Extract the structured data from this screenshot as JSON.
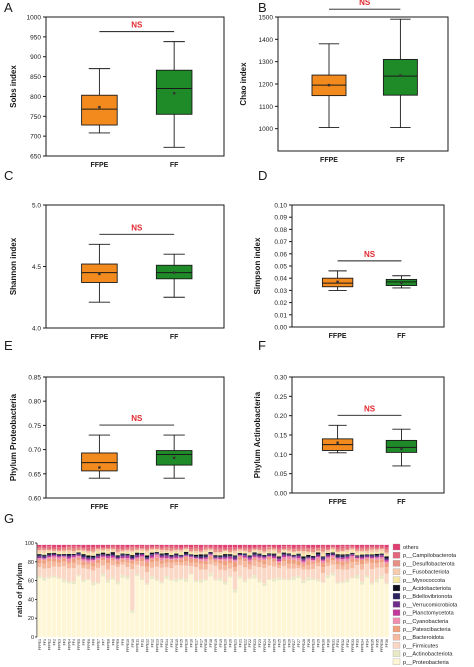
{
  "colors": {
    "ffpe_box": "#F28A1E",
    "ff_box": "#1E8A28",
    "median_line": "#1a1a1a",
    "ns_text": "#E0282E",
    "axis": "#1a1a1a"
  },
  "chart_data": [
    {
      "panel": "A",
      "type": "box",
      "ylabel": "Sobs index",
      "ylim": [
        650,
        1000
      ],
      "yticks": [
        650,
        700,
        750,
        800,
        850,
        900,
        950,
        1000
      ],
      "categories": [
        "FFPE",
        "FF"
      ],
      "boxes": [
        {
          "name": "FFPE",
          "min": 708,
          "q1": 728,
          "median": 768,
          "q3": 803,
          "max": 870,
          "mean": 773,
          "color": "#F28A1E"
        },
        {
          "name": "FF",
          "min": 672,
          "q1": 755,
          "median": 820,
          "q3": 866,
          "max": 938,
          "mean": 808,
          "color": "#1E8A28"
        }
      ],
      "significance": "NS"
    },
    {
      "panel": "B",
      "type": "box",
      "ylabel": "Chao index",
      "ylim": [
        900,
        1500
      ],
      "yticks": [
        1000,
        1100,
        1200,
        1300,
        1400,
        1500
      ],
      "categories": [
        "FFPE",
        "FF"
      ],
      "boxes": [
        {
          "name": "FFPE",
          "min": 1005,
          "q1": 1148,
          "median": 1195,
          "q3": 1240,
          "max": 1380,
          "mean": 1195,
          "color": "#F28A1E"
        },
        {
          "name": "FF",
          "min": 1005,
          "q1": 1150,
          "median": 1235,
          "q3": 1310,
          "max": 1490,
          "mean": 1238,
          "color": "#1E8A28"
        }
      ],
      "significance": "NS"
    },
    {
      "panel": "C",
      "type": "box",
      "ylabel": "Shannon index",
      "ylim": [
        4.0,
        5.0
      ],
      "yticks": [
        4.0,
        4.5,
        5.0
      ],
      "categories": [
        "FFPE",
        "FF"
      ],
      "boxes": [
        {
          "name": "FFPE",
          "min": 4.21,
          "q1": 4.37,
          "median": 4.45,
          "q3": 4.52,
          "max": 4.68,
          "mean": 4.44,
          "color": "#F28A1E"
        },
        {
          "name": "FF",
          "min": 4.25,
          "q1": 4.4,
          "median": 4.45,
          "q3": 4.51,
          "max": 4.6,
          "mean": 4.45,
          "color": "#1E8A28"
        }
      ],
      "significance": "NS"
    },
    {
      "panel": "D",
      "type": "box",
      "ylabel": "Simpson index",
      "ylim": [
        0.0,
        0.1
      ],
      "yticks": [
        0.0,
        0.01,
        0.02,
        0.03,
        0.04,
        0.05,
        0.06,
        0.07,
        0.08,
        0.09,
        0.1
      ],
      "categories": [
        "FFPE",
        "FF"
      ],
      "boxes": [
        {
          "name": "FFPE",
          "min": 0.03,
          "q1": 0.033,
          "median": 0.036,
          "q3": 0.04,
          "max": 0.046,
          "mean": 0.037,
          "color": "#F28A1E"
        },
        {
          "name": "FF",
          "min": 0.032,
          "q1": 0.034,
          "median": 0.037,
          "q3": 0.039,
          "max": 0.042,
          "mean": 0.036,
          "color": "#1E8A28"
        }
      ],
      "significance": "NS"
    },
    {
      "panel": "E",
      "type": "box",
      "ylabel": "Phylum Proteobacteria",
      "ylim": [
        0.6,
        0.85
      ],
      "yticks": [
        0.6,
        0.65,
        0.7,
        0.75,
        0.8,
        0.85
      ],
      "categories": [
        "FFPE",
        "FF"
      ],
      "boxes": [
        {
          "name": "FFPE",
          "min": 0.641,
          "q1": 0.656,
          "median": 0.673,
          "q3": 0.693,
          "max": 0.73,
          "mean": 0.663,
          "color": "#F28A1E"
        },
        {
          "name": "FF",
          "min": 0.641,
          "q1": 0.668,
          "median": 0.69,
          "q3": 0.698,
          "max": 0.73,
          "mean": 0.683,
          "color": "#1E8A28"
        }
      ],
      "significance": "NS"
    },
    {
      "panel": "F",
      "type": "box",
      "ylabel": "Phylum Actinobacteria",
      "ylim": [
        0.0,
        0.3
      ],
      "yticks": [
        0.0,
        0.05,
        0.1,
        0.15,
        0.2,
        0.25,
        0.3
      ],
      "categories": [
        "FFPE",
        "FF"
      ],
      "boxes": [
        {
          "name": "FFPE",
          "min": 0.104,
          "q1": 0.11,
          "median": 0.125,
          "q3": 0.14,
          "max": 0.175,
          "mean": 0.13,
          "color": "#F28A1E"
        },
        {
          "name": "FF",
          "min": 0.07,
          "q1": 0.105,
          "median": 0.118,
          "q3": 0.136,
          "max": 0.165,
          "mean": 0.114,
          "color": "#1E8A28"
        }
      ],
      "significance": "NS"
    },
    {
      "panel": "G",
      "type": "bar",
      "ylabel": "ratio of phylum",
      "ylim": [
        0,
        100
      ],
      "yticks": [
        0,
        20,
        40,
        60,
        80,
        100
      ],
      "sample_count": 72,
      "series": [
        {
          "name": "p__Proteobacteria",
          "color": "#FFF6D6"
        },
        {
          "name": "p__Actinobacteriota",
          "color": "#E9E9C6"
        },
        {
          "name": "p__Firmicutes",
          "color": "#FBD7C6"
        },
        {
          "name": "p__Bacteroidota",
          "color": "#F5B9A0"
        },
        {
          "name": "p__Patescibacteria",
          "color": "#EFA07E"
        },
        {
          "name": "p__Cyanobacteria",
          "color": "#F08EB0"
        },
        {
          "name": "p__Planctomycetota",
          "color": "#C2379A"
        },
        {
          "name": "p__Verrucomicrobiota",
          "color": "#6E2D8A"
        },
        {
          "name": "p__Bdellovibrionota",
          "color": "#2B2460"
        },
        {
          "name": "p__Acidobacteriota",
          "color": "#0F0F1E"
        },
        {
          "name": "p__Myxococcota",
          "color": "#F6E7A6"
        },
        {
          "name": "p__Fusobacteriota",
          "color": "#F6CBAE"
        },
        {
          "name": "p__Desulfobacterota",
          "color": "#E58E82"
        },
        {
          "name": "p__Campilobacterota",
          "color": "#E3677C"
        },
        {
          "name": "others",
          "color": "#E13F72"
        }
      ]
    }
  ]
}
